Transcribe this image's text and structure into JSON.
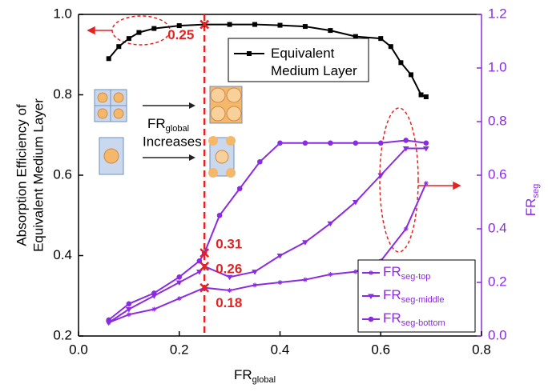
{
  "chart_data": {
    "type": "line",
    "x_label": {
      "main": "FR",
      "sub": "global"
    },
    "y_label": [
      "Absorption Efficiency of",
      "Equivalent Medium Layer"
    ],
    "y2_label": {
      "main": "FR",
      "sub": "seg"
    },
    "xlim": [
      0,
      0.8
    ],
    "xticks": [
      {
        "value": 0,
        "label": "0.0"
      },
      0.2,
      0.4,
      0.6,
      0.8
    ],
    "ylim": [
      0.2,
      1.0
    ],
    "yticks": [
      0.2,
      0.4,
      0.6,
      0.8,
      {
        "value": 1,
        "label": "1.0"
      }
    ],
    "y2lim": [
      0,
      1.2
    ],
    "y2ticks": [
      {
        "value": 0,
        "label": "0.0"
      },
      0.2,
      0.4,
      0.6,
      0.8,
      {
        "value": 1,
        "label": "1.0"
      },
      1.2
    ],
    "series": [
      {
        "name": "Equivalent Medium Layer",
        "color": "#000000",
        "marker": "square",
        "x": [
          0.06,
          0.08,
          0.1,
          0.12,
          0.15,
          0.2,
          0.25,
          0.3,
          0.35,
          0.4,
          0.45,
          0.5,
          0.55,
          0.6,
          0.62,
          0.64,
          0.66,
          0.68,
          0.69
        ],
        "values": [
          0.89,
          0.92,
          0.94,
          0.955,
          0.965,
          0.972,
          0.975,
          0.975,
          0.975,
          0.973,
          0.97,
          0.96,
          0.945,
          0.94,
          0.92,
          0.88,
          0.85,
          0.8,
          0.795
        ]
      },
      {
        "name": "FR",
        "name_sub": "seg-top",
        "color": "#8a2be2",
        "axis": "y2",
        "marker": "star",
        "x": [
          0.06,
          0.1,
          0.15,
          0.2,
          0.25,
          0.3,
          0.35,
          0.4,
          0.45,
          0.5,
          0.55,
          0.6,
          0.65,
          0.69
        ],
        "values": [
          0.05,
          0.08,
          0.1,
          0.14,
          0.18,
          0.17,
          0.19,
          0.2,
          0.21,
          0.23,
          0.24,
          0.28,
          0.4,
          0.57
        ]
      },
      {
        "name": "FR",
        "name_sub": "seg-middle",
        "color": "#8a2be2",
        "axis": "y2",
        "marker": "triangle",
        "x": [
          0.06,
          0.1,
          0.15,
          0.2,
          0.24,
          0.25,
          0.3,
          0.35,
          0.4,
          0.45,
          0.5,
          0.55,
          0.6,
          0.65,
          0.69
        ],
        "values": [
          0.05,
          0.1,
          0.15,
          0.2,
          0.24,
          0.26,
          0.22,
          0.24,
          0.3,
          0.35,
          0.42,
          0.5,
          0.6,
          0.7,
          0.7
        ]
      },
      {
        "name": "FR",
        "name_sub": "seg-bottom",
        "color": "#8a2be2",
        "axis": "y2",
        "marker": "circle",
        "x": [
          0.06,
          0.1,
          0.15,
          0.2,
          0.24,
          0.25,
          0.28,
          0.32,
          0.36,
          0.4,
          0.45,
          0.5,
          0.55,
          0.6,
          0.65,
          0.69
        ],
        "values": [
          0.06,
          0.12,
          0.16,
          0.22,
          0.28,
          0.31,
          0.45,
          0.55,
          0.65,
          0.72,
          0.72,
          0.72,
          0.72,
          0.72,
          0.73,
          0.72
        ]
      }
    ],
    "annotations": [
      "0.25",
      "0.31",
      "0.26",
      "0.18"
    ],
    "inset_label": {
      "main": "FR",
      "sub": "global",
      "line2": "Increases"
    },
    "vline": 0.25
  }
}
